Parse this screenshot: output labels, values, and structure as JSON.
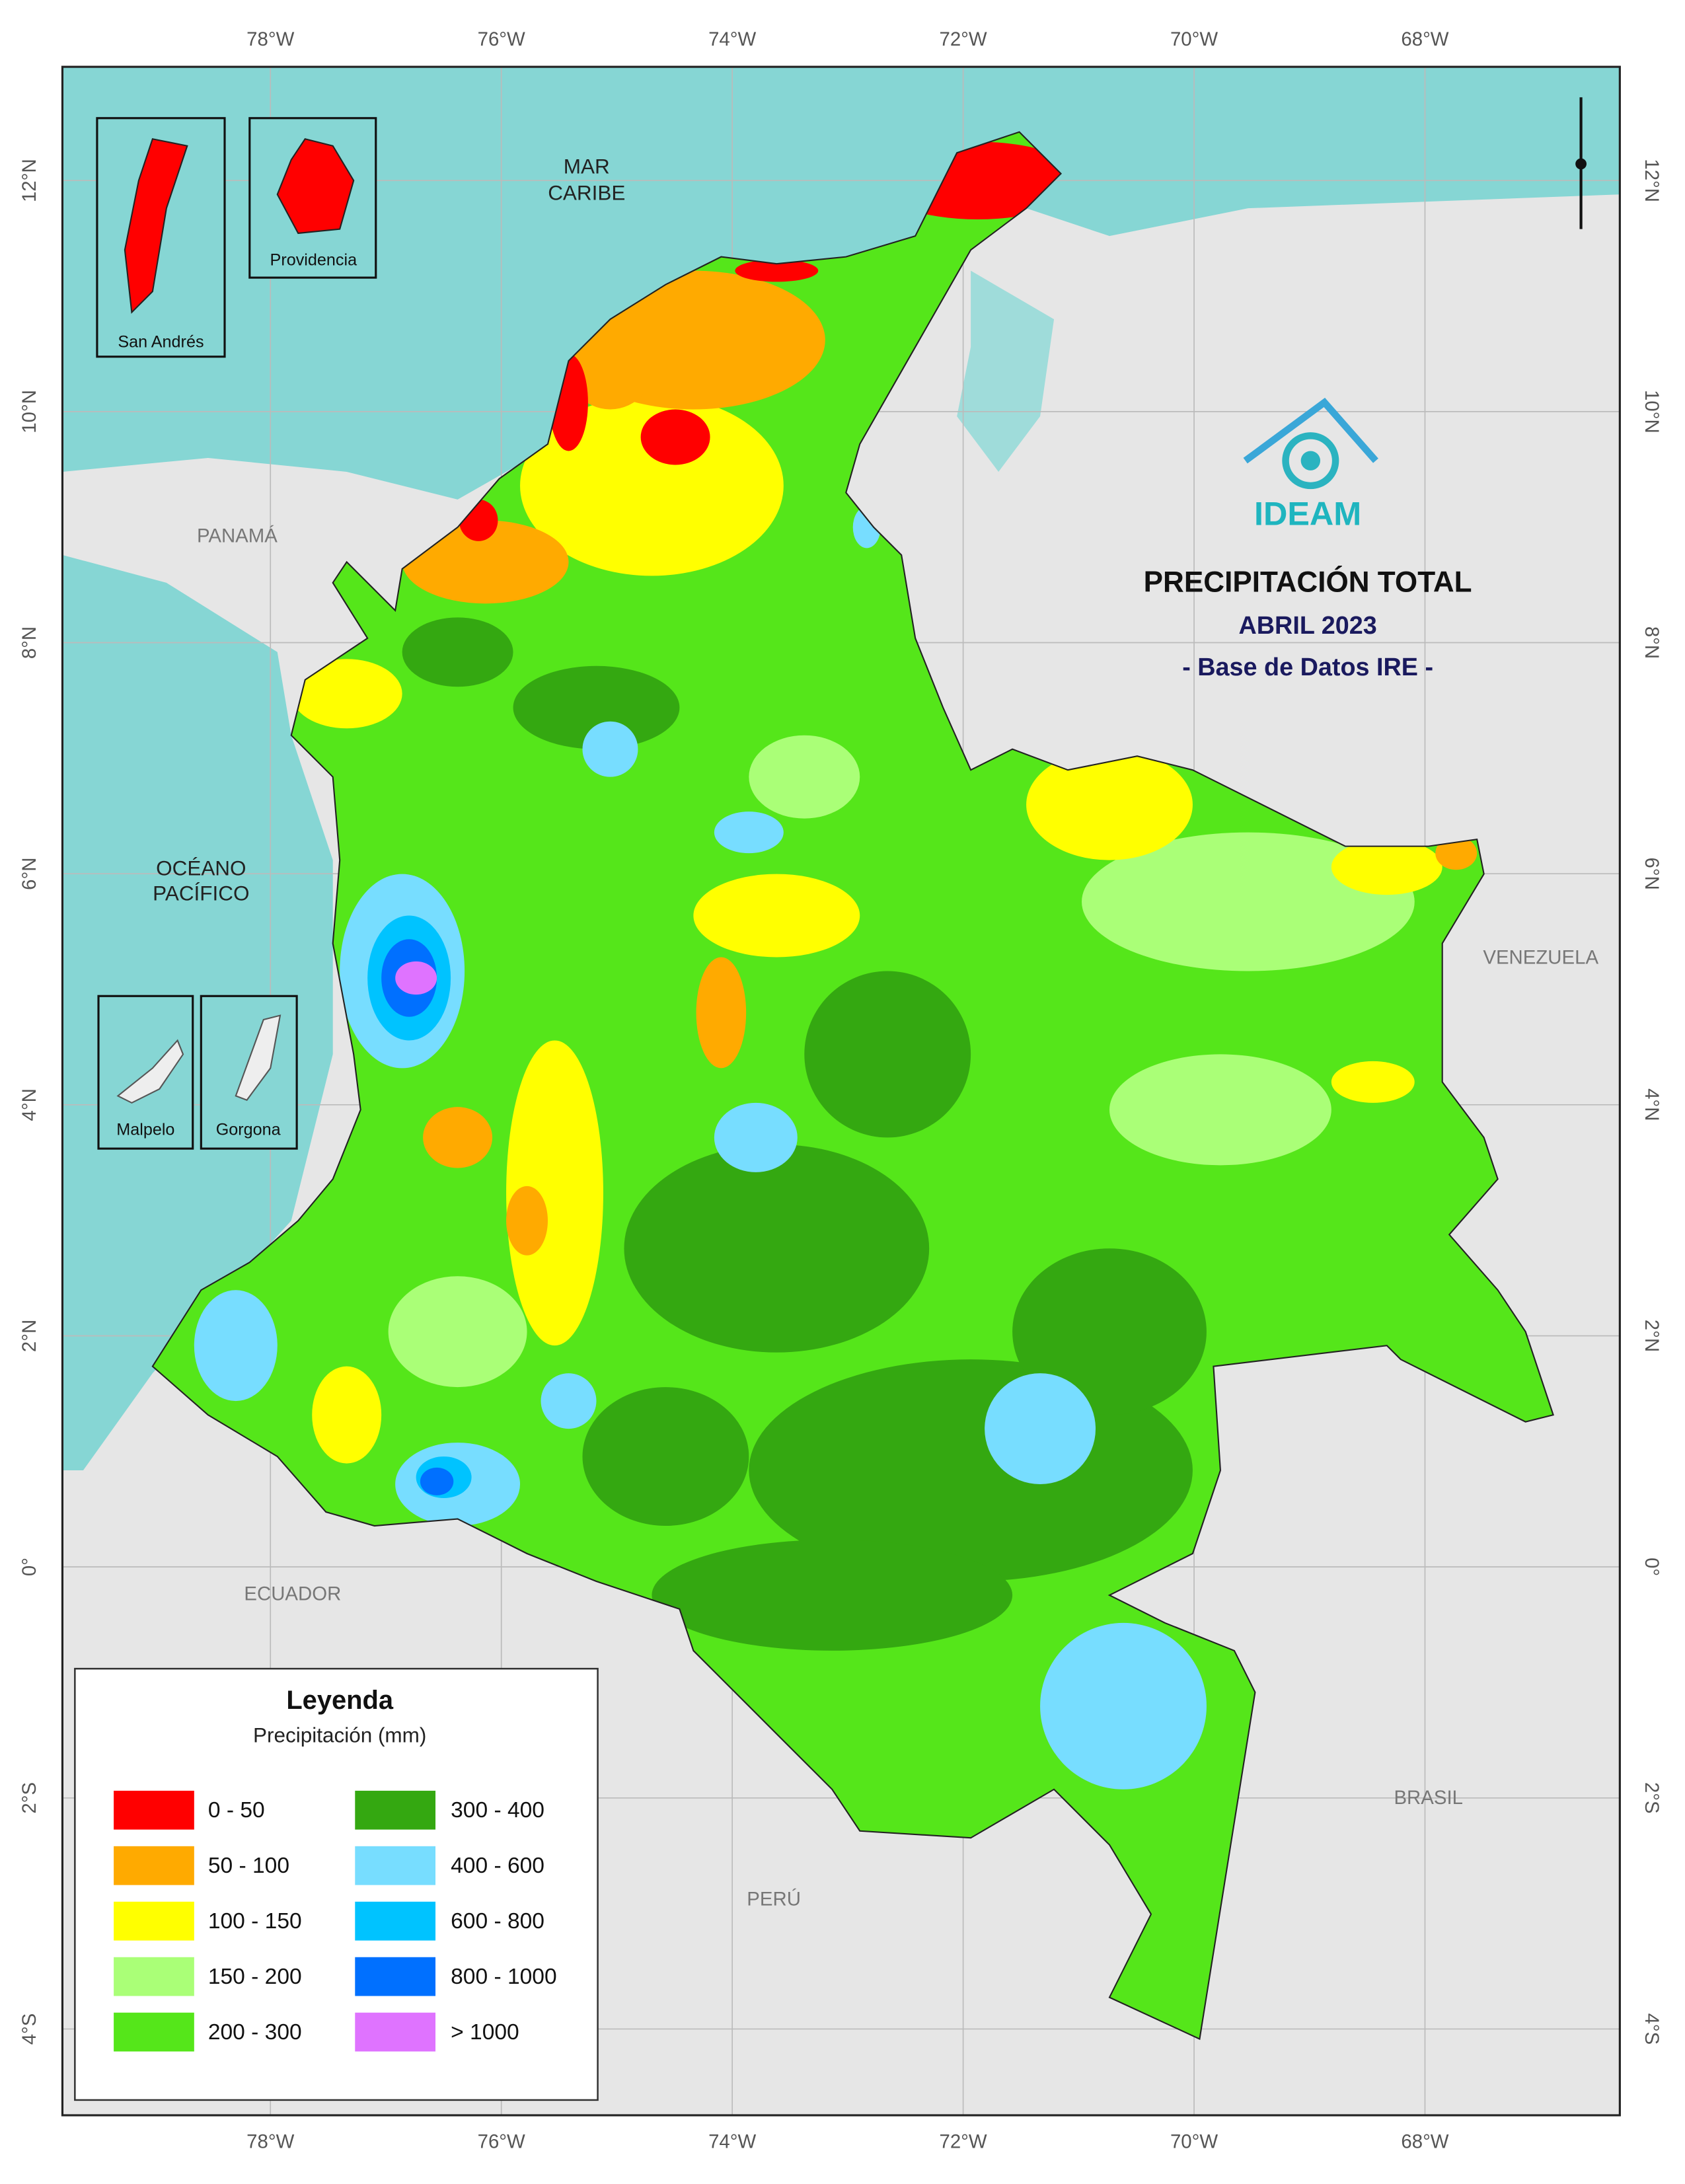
{
  "title": "PRECIPITACIÓN TOTAL",
  "subtitle": "ABRIL 2023",
  "source": "- Base de Datos IRE -",
  "logo": "IDEAM",
  "graticule": {
    "longitudes": [
      "78°W",
      "76°W",
      "74°W",
      "72°W",
      "70°W",
      "68°W"
    ],
    "latitudes": [
      "12°N",
      "10°N",
      "8°N",
      "6°N",
      "4°N",
      "2°N",
      "0°",
      "2°S",
      "4°S"
    ]
  },
  "places": {
    "sea_north": [
      "MAR",
      "CARIBE"
    ],
    "ocean_west": [
      "OCÉANO",
      "PACÍFICO"
    ],
    "panama": "PANAMÁ",
    "venezuela": "VENEZUELA",
    "ecuador": "ECUADOR",
    "brasil": "BRASIL",
    "peru": "PERÚ"
  },
  "insets": [
    "San Andrés",
    "Providencia",
    "Malpelo",
    "Gorgona"
  ],
  "legend": {
    "title": "Leyenda",
    "subtitle": "Precipitación (mm)",
    "items": [
      {
        "label": "0 - 50",
        "color": "#ff0000"
      },
      {
        "label": "50 - 100",
        "color": "#ffaa00"
      },
      {
        "label": "100 - 150",
        "color": "#ffff00"
      },
      {
        "label": "150 - 200",
        "color": "#aaff77"
      },
      {
        "label": "200 - 300",
        "color": "#55e61a"
      },
      {
        "label": "300 - 400",
        "color": "#34a811"
      },
      {
        "label": "400 - 600",
        "color": "#77ddff"
      },
      {
        "label": "600 - 800",
        "color": "#00c3ff"
      },
      {
        "label": "800 - 1000",
        "color": "#0070ff"
      },
      {
        "label": "> 1000",
        "color": "#df73ff"
      }
    ]
  }
}
